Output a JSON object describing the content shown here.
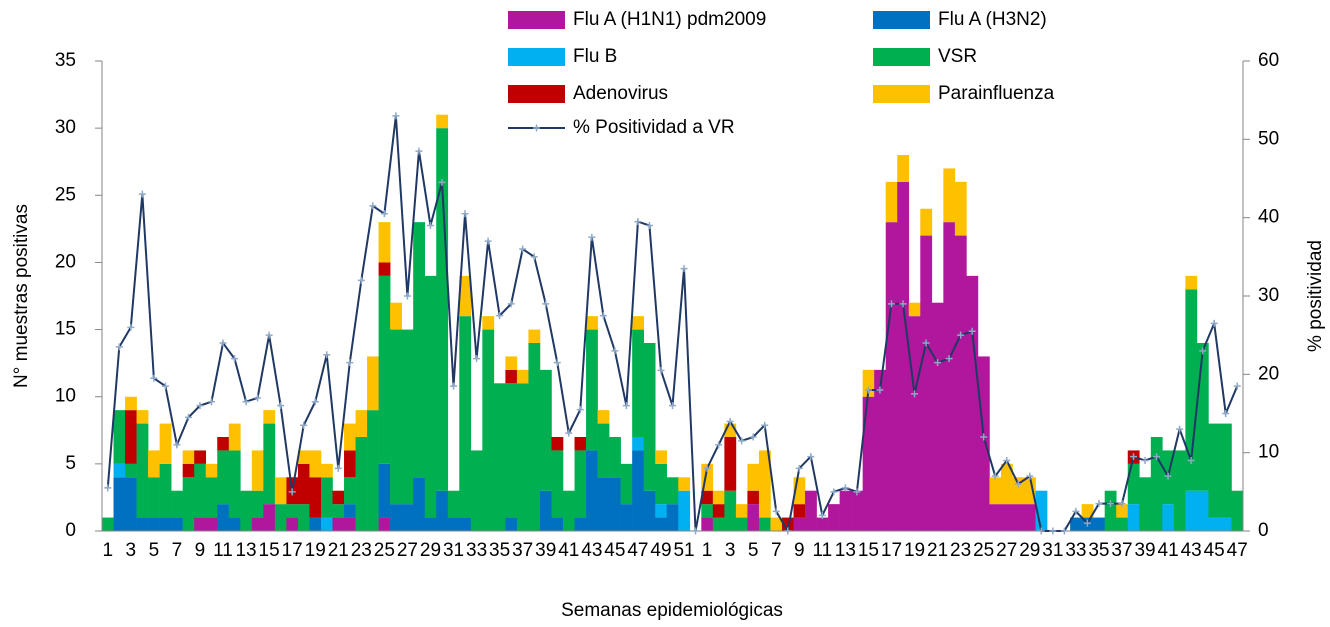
{
  "chart_data": {
    "type": "bar",
    "stacked": true,
    "x_label": "Semanas epidemiológicas",
    "y_label": "N° muestras positivas",
    "y2_label": "% positividad",
    "ylim": [
      0,
      35
    ],
    "yticks": [
      0,
      5,
      10,
      15,
      20,
      25,
      30,
      35
    ],
    "y2lim": [
      0,
      60
    ],
    "y2ticks": [
      0,
      10,
      20,
      30,
      40,
      50,
      60
    ],
    "grid": false,
    "legend": "top",
    "categories": [
      "1",
      null,
      "3",
      null,
      "5",
      null,
      "7",
      null,
      "9",
      null,
      "11",
      null,
      "13",
      null,
      "15",
      null,
      "17",
      null,
      "19",
      null,
      "21",
      null,
      "23",
      null,
      "25",
      null,
      "27",
      null,
      "29",
      null,
      "31",
      null,
      "33",
      null,
      "35",
      null,
      "37",
      null,
      "39",
      null,
      "41",
      null,
      "43",
      null,
      "45",
      null,
      "47",
      null,
      "49",
      null,
      "51",
      null,
      "1",
      null,
      "3",
      null,
      "5",
      null,
      "7",
      null,
      "9",
      null,
      "11",
      null,
      "13",
      null,
      "15",
      null,
      "17",
      null,
      "19",
      null,
      "21",
      null,
      "23",
      null,
      "25",
      null,
      "27",
      null,
      "29",
      null,
      "31",
      null,
      "33",
      null,
      "35",
      null,
      "37",
      null,
      "39",
      null,
      "41",
      null,
      "43",
      null,
      "45",
      null,
      "47"
    ],
    "series": [
      {
        "name": "Flu A (H1N1) pdm2009",
        "color": "#b0179c",
        "values": [
          0,
          0,
          0,
          0,
          0,
          0,
          0,
          0,
          1,
          1,
          0,
          0,
          0,
          1,
          2,
          0,
          1,
          0,
          0,
          0,
          1,
          1,
          0,
          0,
          1,
          0,
          0,
          0,
          0,
          0,
          0,
          0,
          0,
          0,
          0,
          0,
          0,
          0,
          0,
          0,
          0,
          0,
          0,
          0,
          0,
          0,
          0,
          0,
          0,
          0,
          0,
          0,
          1,
          0,
          0,
          0,
          2,
          0,
          0,
          0,
          1,
          3,
          1,
          2,
          3,
          3,
          10,
          12,
          23,
          26,
          16,
          22,
          17,
          23,
          22,
          19,
          13,
          2,
          2,
          2,
          2,
          0,
          0,
          0,
          0,
          0,
          0,
          0,
          0,
          0,
          0,
          0,
          0,
          0,
          0,
          0,
          0,
          0,
          0
        ]
      },
      {
        "name": "Flu A (H3N2)",
        "color": "#0070c0",
        "values": [
          0,
          4,
          4,
          1,
          1,
          1,
          1,
          0,
          0,
          0,
          2,
          1,
          0,
          0,
          0,
          0,
          0,
          0,
          1,
          0,
          0,
          1,
          0,
          0,
          4,
          2,
          2,
          4,
          1,
          3,
          1,
          1,
          0,
          0,
          0,
          1,
          0,
          0,
          3,
          1,
          0,
          1,
          6,
          4,
          4,
          2,
          6,
          3,
          1,
          2,
          0,
          0,
          0,
          0,
          0,
          0,
          0,
          0,
          0,
          0,
          0,
          0,
          0,
          0,
          0,
          0,
          0,
          0,
          0,
          0,
          0,
          0,
          0,
          0,
          0,
          0,
          0,
          0,
          0,
          0,
          0,
          0,
          0,
          0,
          1,
          1,
          1,
          0,
          0,
          0,
          0,
          0,
          0,
          0,
          0,
          0,
          0,
          0,
          0
        ]
      },
      {
        "name": "Flu B",
        "color": "#00b0f0",
        "values": [
          0,
          1,
          0,
          0,
          0,
          0,
          0,
          0,
          0,
          0,
          0,
          0,
          0,
          0,
          0,
          0,
          0,
          0,
          0,
          1,
          0,
          0,
          0,
          0,
          0,
          0,
          0,
          0,
          0,
          0,
          0,
          0,
          0,
          0,
          0,
          0,
          0,
          0,
          0,
          0,
          0,
          0,
          0,
          0,
          0,
          0,
          1,
          0,
          1,
          0,
          3,
          0,
          0,
          0,
          0,
          0,
          0,
          0,
          0,
          0,
          0,
          0,
          0,
          0,
          0,
          0,
          0,
          0,
          0,
          0,
          0,
          0,
          0,
          0,
          0,
          0,
          0,
          0,
          0,
          0,
          0,
          3,
          0,
          0,
          0,
          0,
          0,
          0,
          0,
          2,
          0,
          0,
          2,
          0,
          3,
          3,
          1,
          1,
          0
        ]
      },
      {
        "name": "VSR",
        "color": "#00b050",
        "values": [
          1,
          4,
          1,
          7,
          3,
          4,
          2,
          4,
          4,
          3,
          4,
          5,
          3,
          2,
          6,
          2,
          1,
          2,
          0,
          3,
          1,
          2,
          7,
          9,
          14,
          13,
          13,
          19,
          18,
          27,
          2,
          15,
          6,
          15,
          11,
          10,
          11,
          14,
          9,
          5,
          3,
          5,
          9,
          4,
          3,
          3,
          8,
          11,
          3,
          2,
          0,
          0,
          1,
          1,
          3,
          1,
          0,
          1,
          0,
          0,
          0,
          0,
          0,
          0,
          0,
          0,
          0,
          0,
          0,
          0,
          0,
          0,
          0,
          0,
          0,
          0,
          0,
          0,
          0,
          0,
          0,
          0,
          0,
          0,
          0,
          0,
          0,
          3,
          1,
          3,
          4,
          7,
          4,
          6,
          15,
          11,
          7,
          7,
          3
        ]
      },
      {
        "name": "Adenovirus",
        "color": "#c00000",
        "values": [
          0,
          0,
          4,
          0,
          0,
          0,
          0,
          1,
          1,
          0,
          1,
          0,
          0,
          0,
          0,
          0,
          2,
          3,
          3,
          0,
          1,
          2,
          0,
          0,
          1,
          0,
          0,
          0,
          0,
          0,
          0,
          0,
          0,
          0,
          0,
          1,
          0,
          0,
          0,
          1,
          0,
          1,
          0,
          0,
          0,
          0,
          0,
          0,
          0,
          0,
          0,
          0,
          1,
          1,
          4,
          0,
          1,
          0,
          0,
          1,
          1,
          0,
          0,
          0,
          0,
          0,
          0,
          0,
          0,
          0,
          0,
          0,
          0,
          0,
          0,
          0,
          0,
          0,
          0,
          0,
          0,
          0,
          0,
          0,
          0,
          0,
          0,
          0,
          0,
          1,
          0,
          0,
          0,
          0,
          0,
          0,
          0,
          0,
          0
        ]
      },
      {
        "name": "Parainfluenza",
        "color": "#ffc000",
        "values": [
          0,
          0,
          1,
          1,
          2,
          3,
          0,
          1,
          0,
          1,
          0,
          2,
          0,
          3,
          1,
          2,
          0,
          1,
          2,
          1,
          0,
          2,
          2,
          4,
          3,
          2,
          0,
          0,
          0,
          1,
          0,
          3,
          0,
          1,
          0,
          1,
          1,
          1,
          0,
          0,
          0,
          0,
          1,
          1,
          0,
          0,
          1,
          0,
          1,
          0,
          1,
          0,
          2,
          1,
          1,
          1,
          2,
          5,
          1,
          0,
          2,
          0,
          0,
          0,
          0,
          0,
          2,
          0,
          3,
          2,
          1,
          2,
          0,
          4,
          4,
          0,
          0,
          2,
          3,
          2,
          2,
          0,
          0,
          0,
          0,
          1,
          0,
          0,
          1,
          0,
          0,
          0,
          0,
          0,
          1,
          0,
          0,
          0,
          0
        ]
      },
      {
        "name": "% Positividad a VR",
        "color": "#1f3864",
        "marker_color": "#8fa9c8",
        "axis": "y2",
        "type": "line",
        "values": [
          5.5,
          23.5,
          26,
          43,
          19.5,
          18.5,
          11,
          14.5,
          16,
          16.5,
          24,
          22,
          16.5,
          17,
          25,
          16,
          5,
          13.5,
          16.5,
          22.5,
          8,
          21.5,
          32,
          41.5,
          40.5,
          53,
          30,
          48.5,
          39,
          44.5,
          18.5,
          40.5,
          22,
          37,
          27.5,
          29,
          36,
          35,
          29,
          21.5,
          12.5,
          15.5,
          37.5,
          27.5,
          23,
          16,
          39.5,
          39,
          20.5,
          16,
          33.5,
          0,
          8,
          11,
          14,
          11.5,
          12,
          13.5,
          2.5,
          0,
          8,
          9.5,
          2,
          5,
          5.5,
          5,
          18,
          18,
          29,
          29,
          17.5,
          24,
          21.5,
          22,
          25,
          25.5,
          12,
          7,
          9,
          6,
          7,
          0,
          0,
          0,
          2.5,
          1,
          3.5,
          3.5,
          3.5,
          9.5,
          9,
          9.5,
          7,
          13,
          9,
          23,
          26.5,
          15,
          18.5
        ]
      }
    ]
  }
}
